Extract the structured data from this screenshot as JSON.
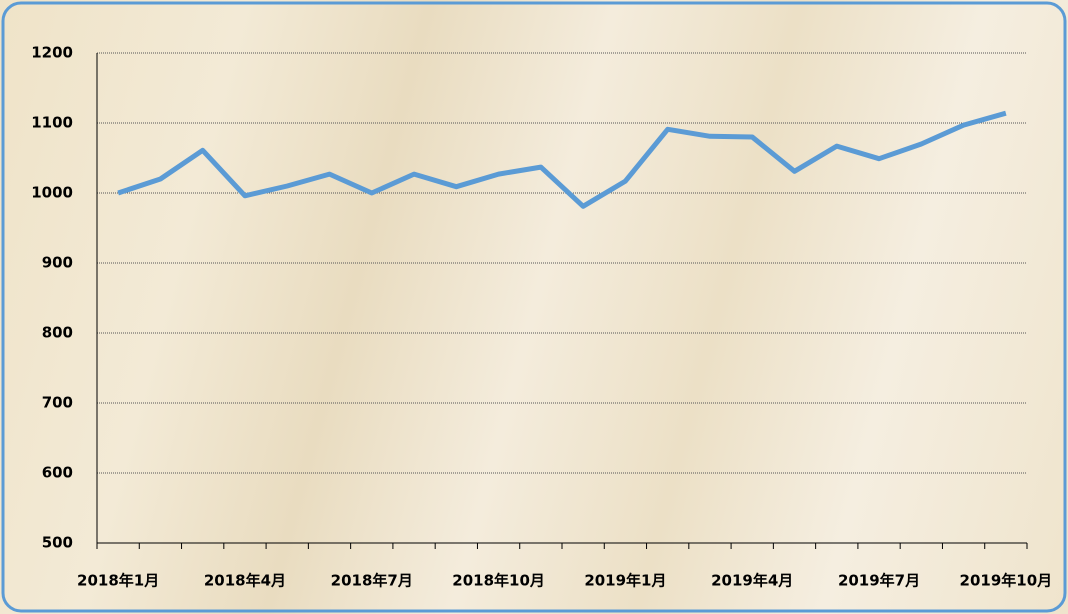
{
  "chart_data": {
    "type": "line",
    "categories": [
      "2018年1月",
      null,
      null,
      "2018年4月",
      null,
      null,
      "2018年7月",
      null,
      null,
      "2018年10月",
      null,
      null,
      "2019年1月",
      null,
      null,
      "2019年4月",
      null,
      null,
      "2019年7月",
      null,
      null,
      "2019年10月"
    ],
    "series": [
      {
        "color": "#5b9bd5",
        "values": [
          1000,
          1020,
          1061,
          996,
          1010,
          1027,
          1000,
          1027,
          1009,
          1027,
          1037,
          981,
          1017,
          1091,
          1081,
          1080,
          1031,
          1067,
          1049,
          1070,
          1097,
          1114
        ]
      }
    ],
    "ylim": [
      500,
      1200
    ],
    "yticks": [
      500,
      600,
      700,
      800,
      900,
      1000,
      1100,
      1200
    ],
    "grid": true
  }
}
